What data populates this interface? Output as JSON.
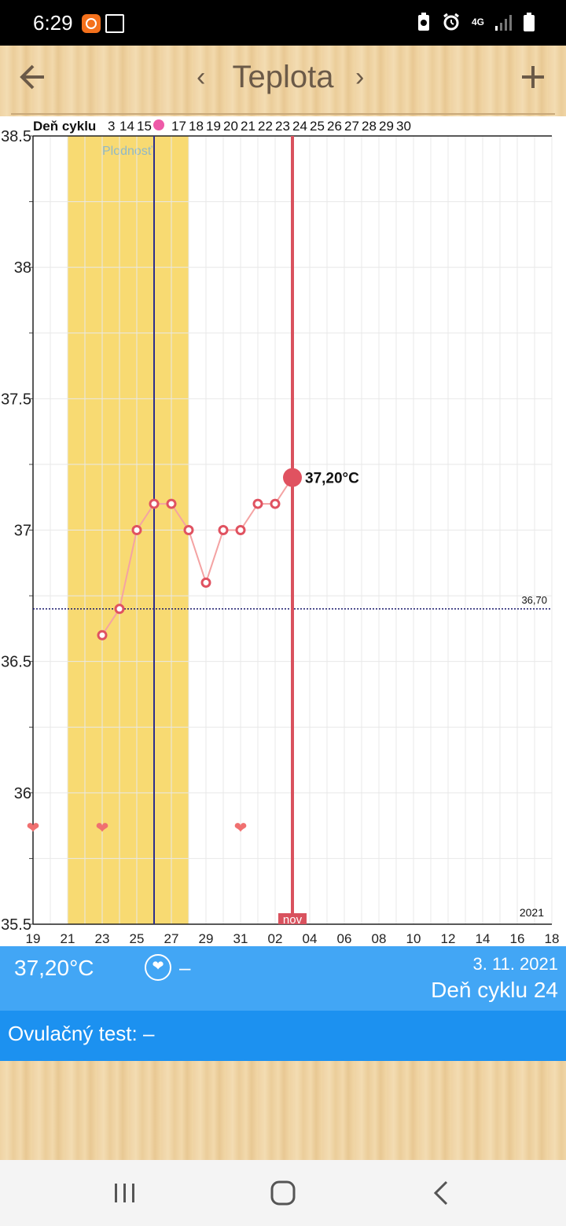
{
  "status": {
    "time": "6:29",
    "network": "4G"
  },
  "appbar": {
    "title": "Teplota",
    "prev": "‹",
    "next": "›",
    "back_icon": "arrow-left-icon",
    "add_icon": "plus-icon"
  },
  "chart_data": {
    "type": "line",
    "ylabel": "",
    "xlabel": "",
    "y_ticks": [
      "38.5",
      "38",
      "37.5",
      "37",
      "36.5",
      "36",
      "35.5"
    ],
    "ylim": [
      35.5,
      38.5
    ],
    "x_date_ticks": [
      "19",
      "21",
      "23",
      "25",
      "27",
      "29",
      "31",
      "02",
      "04",
      "06",
      "08",
      "10",
      "12",
      "14",
      "16",
      "18"
    ],
    "cycle_day_label": "Deň cyklu",
    "cycle_day_ticks": [
      "3",
      "14",
      "15",
      "",
      "17",
      "18",
      "19",
      "20",
      "21",
      "22",
      "23",
      "24",
      "25",
      "26",
      "27",
      "28",
      "29",
      "30"
    ],
    "fertility_label": "Plodnosť",
    "coverline_value": "36,70",
    "month_label": "nov",
    "year_label": "2021",
    "series": [
      {
        "x": [
          "2021-10-23",
          "2021-10-24",
          "2021-10-25",
          "2021-10-26",
          "2021-10-27",
          "2021-10-28",
          "2021-10-29",
          "2021-10-30",
          "2021-10-31",
          "2021-11-01",
          "2021-11-02",
          "2021-11-03"
        ],
        "values": [
          36.6,
          36.7,
          37.0,
          37.1,
          37.1,
          37.0,
          36.8,
          37.0,
          37.0,
          37.1,
          37.1,
          37.2
        ]
      }
    ],
    "current_label": "37,20°C",
    "heart_dates": [
      "2021-10-19",
      "2021-10-23",
      "2021-10-31"
    ],
    "fertile_window": [
      "2021-10-21",
      "2021-10-28"
    ],
    "ovulation_date": "2021-10-26",
    "today_date": "2021-11-03",
    "colors": {
      "fertile": "#f8da72",
      "line": "#f4a3a3",
      "point": "#e05260",
      "today": "#d9525e",
      "ovulation": "#2c2d8c",
      "heart": "#f07070",
      "cover": "#1b1b6e"
    }
  },
  "info": {
    "temp": "37,20°C",
    "heart_value": "–",
    "date": "3. 11. 2021",
    "cycle_day": "Deň cyklu 24"
  },
  "ovulation": {
    "text": "Ovulačný test: –"
  }
}
